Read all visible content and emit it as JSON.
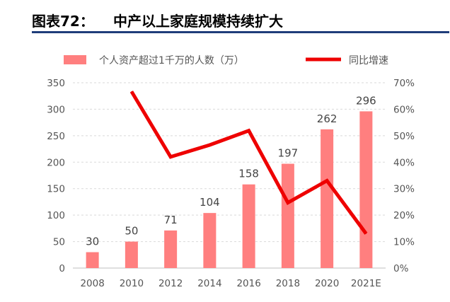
{
  "header": {
    "figure_number": "图表72：",
    "title": "中产以上家庭规模持续扩大"
  },
  "chart_data": {
    "type": "bar",
    "categories": [
      "2008",
      "2010",
      "2012",
      "2014",
      "2016",
      "2018",
      "2020",
      "2021E"
    ],
    "series": [
      {
        "name": "个人资产超过1千万的人数（万）",
        "type": "bar",
        "axis": "left",
        "color": "#ff7f7f",
        "values": [
          30,
          50,
          71,
          104,
          158,
          197,
          262,
          296
        ],
        "labels": [
          "30",
          "50",
          "71",
          "104",
          "158",
          "197",
          "262",
          "296"
        ]
      },
      {
        "name": "同比增速",
        "type": "line",
        "axis": "right",
        "color": "#ee0000",
        "values": [
          null,
          0.667,
          0.42,
          0.465,
          0.519,
          0.247,
          0.33,
          0.13
        ]
      }
    ],
    "y_left": {
      "range": [
        0,
        350
      ],
      "ticks": [
        0,
        50,
        100,
        150,
        200,
        250,
        300,
        350
      ],
      "tick_labels": [
        "0",
        "50",
        "100",
        "150",
        "200",
        "250",
        "300",
        "350"
      ]
    },
    "y_right": {
      "range": [
        0,
        0.7
      ],
      "ticks": [
        0,
        0.1,
        0.2,
        0.3,
        0.4,
        0.5,
        0.6,
        0.7
      ],
      "tick_labels": [
        "0%",
        "10%",
        "20%",
        "30%",
        "40%",
        "50%",
        "60%",
        "70%"
      ]
    },
    "grid": "horizontal dashed",
    "legend_position": "top"
  }
}
